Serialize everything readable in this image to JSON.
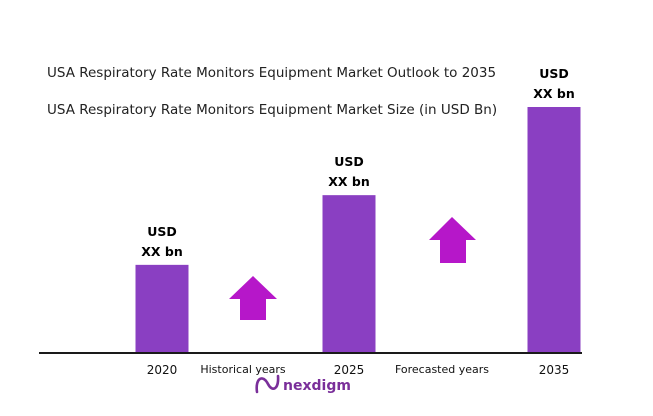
{
  "chart_data": {
    "type": "bar",
    "title": "USA Respiratory Rate Monitors Equipment Market Outlook to 2035",
    "subtitle": "USA Respiratory Rate Monitors Equipment Market Size (in USD Bn)",
    "categories": [
      "2020",
      "2025",
      "2035"
    ],
    "values": [
      0.43,
      0.77,
      1.2
    ],
    "ylim": [
      0,
      1.2
    ],
    "bar_labels": [
      {
        "line1": "USD",
        "line2": "XX bn"
      },
      {
        "line1": "USD",
        "line2": "XX bn"
      },
      {
        "line1": "USD",
        "line2": "XX bn"
      }
    ],
    "period_labels": [
      "Historical years",
      "Forecasted years"
    ],
    "bar_color": "#8a3fc2",
    "arrow_color": "#b617c9",
    "grid": false
  },
  "brand": {
    "name": "nexdigm",
    "color": "#7a2f9a"
  }
}
